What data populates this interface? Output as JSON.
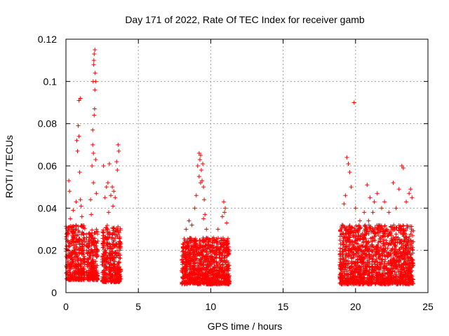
{
  "chart_data": {
    "type": "scatter",
    "title": "Day 171 of 2022, Rate Of TEC Index for receiver gamb",
    "xlabel": "GPS time / hours",
    "ylabel": "ROTI / TECUs",
    "xlim": [
      0,
      25
    ],
    "ylim": [
      0,
      0.12
    ],
    "xticks": [
      0,
      5,
      10,
      15,
      20,
      25
    ],
    "yticks": [
      0,
      0.02,
      0.04,
      0.06,
      0.08,
      0.1,
      0.12
    ],
    "grid": true,
    "marker": "plus",
    "series_color": "#ff0000",
    "clusters": [
      {
        "x_start": 0.0,
        "x_end": 1.3,
        "base_low": 0.006,
        "base_high": 0.032
      },
      {
        "x_start": 1.4,
        "x_end": 2.2,
        "base_low": 0.006,
        "base_high": 0.03
      },
      {
        "x_start": 2.5,
        "x_end": 3.8,
        "base_low": 0.005,
        "base_high": 0.032
      },
      {
        "x_start": 8.0,
        "x_end": 11.3,
        "base_low": 0.004,
        "base_high": 0.026
      },
      {
        "x_start": 18.9,
        "x_end": 24.0,
        "base_low": 0.004,
        "base_high": 0.032
      }
    ],
    "points": [
      [
        0.2,
        0.053
      ],
      [
        0.25,
        0.048
      ],
      [
        0.3,
        0.035
      ],
      [
        0.5,
        0.039
      ],
      [
        0.7,
        0.043
      ],
      [
        0.8,
        0.067
      ],
      [
        0.85,
        0.079
      ],
      [
        0.9,
        0.091
      ],
      [
        1.0,
        0.092
      ],
      [
        0.9,
        0.074
      ],
      [
        0.95,
        0.057
      ],
      [
        1.0,
        0.044
      ],
      [
        1.05,
        0.041
      ],
      [
        1.1,
        0.036
      ],
      [
        0.75,
        0.072
      ],
      [
        1.7,
        0.044
      ],
      [
        1.8,
        0.06
      ],
      [
        1.85,
        0.07
      ],
      [
        1.9,
        0.066
      ],
      [
        1.95,
        0.084
      ],
      [
        2.0,
        0.096
      ],
      [
        1.95,
        0.113
      ],
      [
        2.0,
        0.115
      ],
      [
        1.92,
        0.108
      ],
      [
        2.02,
        0.104
      ],
      [
        1.88,
        0.1
      ],
      [
        2.05,
        0.1
      ],
      [
        1.98,
        0.087
      ],
      [
        1.85,
        0.077
      ],
      [
        2.05,
        0.063
      ],
      [
        1.9,
        0.052
      ],
      [
        1.75,
        0.037
      ],
      [
        2.1,
        0.047
      ],
      [
        1.93,
        0.11
      ],
      [
        2.6,
        0.06
      ],
      [
        2.7,
        0.045
      ],
      [
        2.8,
        0.05
      ],
      [
        2.9,
        0.052
      ],
      [
        3.0,
        0.061
      ],
      [
        3.1,
        0.046
      ],
      [
        3.2,
        0.05
      ],
      [
        3.3,
        0.048
      ],
      [
        3.5,
        0.062
      ],
      [
        3.6,
        0.07
      ],
      [
        3.65,
        0.067
      ],
      [
        3.55,
        0.058
      ],
      [
        3.4,
        0.045
      ],
      [
        2.95,
        0.038
      ],
      [
        3.25,
        0.041
      ],
      [
        8.3,
        0.03
      ],
      [
        8.5,
        0.034
      ],
      [
        8.7,
        0.032
      ],
      [
        8.9,
        0.04
      ],
      [
        9.0,
        0.046
      ],
      [
        9.1,
        0.06
      ],
      [
        9.2,
        0.055
      ],
      [
        9.25,
        0.063
      ],
      [
        9.3,
        0.065
      ],
      [
        9.35,
        0.058
      ],
      [
        9.4,
        0.053
      ],
      [
        9.45,
        0.061
      ],
      [
        9.5,
        0.05
      ],
      [
        9.55,
        0.044
      ],
      [
        9.6,
        0.037
      ],
      [
        9.7,
        0.03
      ],
      [
        9.2,
        0.066
      ],
      [
        9.3,
        0.052
      ],
      [
        9.5,
        0.035
      ],
      [
        10.0,
        0.02
      ],
      [
        10.5,
        0.03
      ],
      [
        10.8,
        0.036
      ],
      [
        10.9,
        0.043
      ],
      [
        11.0,
        0.04
      ],
      [
        11.1,
        0.033
      ],
      [
        10.95,
        0.038
      ],
      [
        19.2,
        0.042
      ],
      [
        19.3,
        0.046
      ],
      [
        19.4,
        0.064
      ],
      [
        19.5,
        0.061
      ],
      [
        19.6,
        0.057
      ],
      [
        19.7,
        0.05
      ],
      [
        19.9,
        0.09
      ],
      [
        20.0,
        0.04
      ],
      [
        20.3,
        0.034
      ],
      [
        20.6,
        0.038
      ],
      [
        20.8,
        0.051
      ],
      [
        21.0,
        0.045
      ],
      [
        21.2,
        0.038
      ],
      [
        21.5,
        0.047
      ],
      [
        21.8,
        0.04
      ],
      [
        22.0,
        0.043
      ],
      [
        22.3,
        0.038
      ],
      [
        22.6,
        0.052
      ],
      [
        23.0,
        0.049
      ],
      [
        23.2,
        0.06
      ],
      [
        23.3,
        0.059
      ],
      [
        23.5,
        0.043
      ],
      [
        23.7,
        0.047
      ],
      [
        23.8,
        0.049
      ],
      [
        23.9,
        0.045
      ],
      [
        22.8,
        0.04
      ],
      [
        21.3,
        0.043
      ],
      [
        20.9,
        0.034
      ]
    ]
  }
}
